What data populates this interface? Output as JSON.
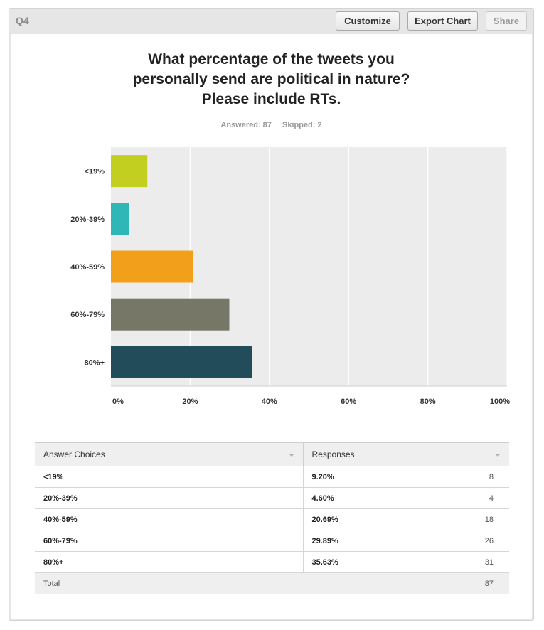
{
  "header": {
    "question_label": "Q4",
    "buttons": {
      "customize": "Customize",
      "export_chart": "Export Chart",
      "share": "Share"
    }
  },
  "question": {
    "title_lines": [
      "What percentage of the tweets you",
      "personally send are political in nature?",
      "Please include RTs."
    ],
    "answered": "Answered: 87",
    "skipped": "Skipped: 2"
  },
  "chart_data": {
    "type": "bar",
    "orientation": "horizontal",
    "categories": [
      "<19%",
      "20%-39%",
      "40%-59%",
      "60%-79%",
      "80%+"
    ],
    "values": [
      9.2,
      4.6,
      20.69,
      29.89,
      35.63
    ],
    "xlim": [
      0,
      100
    ],
    "ticks": [
      "0%",
      "20%",
      "40%",
      "60%",
      "80%",
      "100%"
    ],
    "grid": true,
    "colors": [
      "#c3cf20",
      "#2fb6b6",
      "#f29f1b",
      "#767766",
      "#234c5a"
    ],
    "title": "",
    "xlabel": "",
    "ylabel": ""
  },
  "table": {
    "headers": [
      "Answer Choices",
      "Responses"
    ],
    "rows": [
      {
        "choice": "<19%",
        "percent": "9.20%",
        "count": "8"
      },
      {
        "choice": "20%-39%",
        "percent": "4.60%",
        "count": "4"
      },
      {
        "choice": "40%-59%",
        "percent": "20.69%",
        "count": "18"
      },
      {
        "choice": "60%-79%",
        "percent": "29.89%",
        "count": "26"
      },
      {
        "choice": "80%+",
        "percent": "35.63%",
        "count": "31"
      }
    ],
    "total_label": "Total",
    "total_count": "87"
  }
}
